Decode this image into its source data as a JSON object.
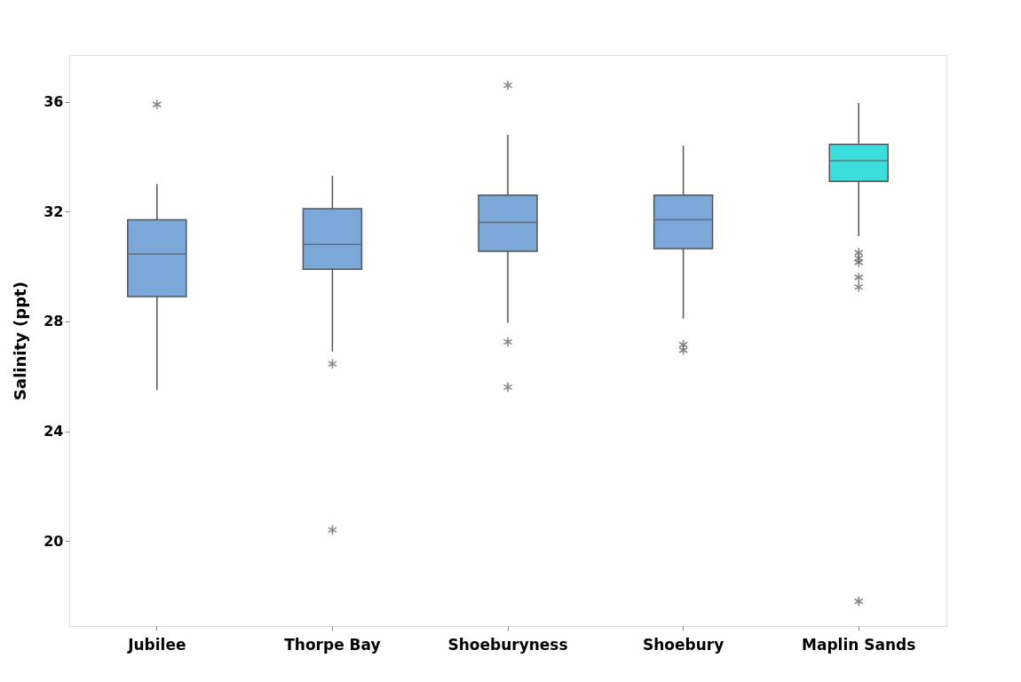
{
  "chart_data": {
    "type": "box",
    "ylabel": "Salinity (ppt)",
    "categories": [
      "Jubilee",
      "Thorpe Bay",
      "Shoeburyness",
      "Shoebury",
      "Maplin Sands"
    ],
    "colors": [
      "#7ba7d9",
      "#7ba7d9",
      "#7ba7d9",
      "#7ba7d9",
      "#3dddde"
    ],
    "boxes": [
      {
        "low": 25.5,
        "q1": 28.9,
        "median": 30.45,
        "q3": 31.7,
        "high": 33.0,
        "outliers": [
          35.9
        ]
      },
      {
        "low": 26.9,
        "q1": 29.9,
        "median": 30.8,
        "q3": 32.1,
        "high": 33.3,
        "outliers": [
          26.45,
          20.4
        ]
      },
      {
        "low": 27.95,
        "q1": 30.55,
        "median": 31.6,
        "q3": 32.6,
        "high": 34.8,
        "outliers": [
          36.6,
          27.25,
          25.6
        ]
      },
      {
        "low": 28.1,
        "q1": 30.65,
        "median": 31.7,
        "q3": 32.6,
        "high": 34.4,
        "outliers": [
          27.15,
          26.95
        ]
      },
      {
        "low": 31.1,
        "q1": 33.1,
        "median": 33.85,
        "q3": 34.45,
        "high": 35.95,
        "outliers": [
          30.5,
          30.3,
          30.15,
          29.6,
          29.25,
          17.8
        ]
      }
    ],
    "ylim": [
      16.9,
      37.7
    ],
    "yticks": [
      20,
      24,
      28,
      32,
      36
    ],
    "grid": false
  }
}
